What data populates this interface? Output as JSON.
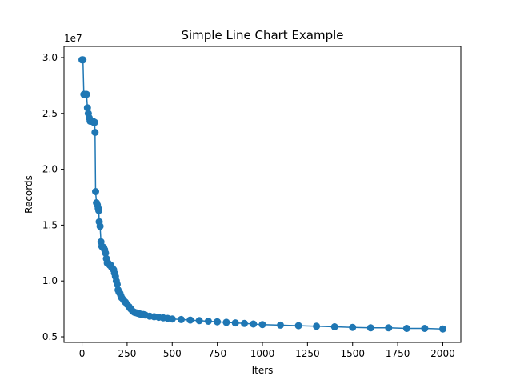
{
  "chart_data": {
    "type": "line",
    "title": "Simple Line Chart Example",
    "xlabel": "Iters",
    "ylabel": "Records",
    "y_scale_label": "1e7",
    "xlim": [
      -100,
      2100
    ],
    "ylim": [
      0.45,
      3.1
    ],
    "x_ticks": [
      0,
      250,
      500,
      750,
      1000,
      1250,
      1500,
      1750,
      2000
    ],
    "x_tick_labels": [
      "0",
      "250",
      "500",
      "750",
      "1000",
      "1250",
      "1500",
      "1750",
      "2000"
    ],
    "y_ticks": [
      0.5,
      1.0,
      1.5,
      2.0,
      2.5,
      3.0
    ],
    "y_tick_labels": [
      "0.5",
      "1.0",
      "1.5",
      "2.0",
      "2.5",
      "3.0"
    ],
    "grid": false,
    "line_color": "#1f77b4",
    "series": [
      {
        "name": "Records",
        "x": [
          0,
          5,
          10,
          15,
          25,
          30,
          35,
          40,
          45,
          50,
          55,
          60,
          65,
          70,
          72,
          75,
          80,
          85,
          90,
          93,
          95,
          100,
          105,
          110,
          115,
          120,
          125,
          130,
          135,
          140,
          145,
          150,
          155,
          160,
          165,
          170,
          175,
          180,
          185,
          190,
          195,
          200,
          205,
          210,
          215,
          220,
          230,
          240,
          250,
          260,
          270,
          280,
          290,
          300,
          310,
          320,
          330,
          340,
          350,
          375,
          400,
          425,
          450,
          475,
          500,
          550,
          600,
          650,
          700,
          750,
          800,
          850,
          900,
          950,
          1000,
          1100,
          1200,
          1300,
          1400,
          1500,
          1600,
          1700,
          1800,
          1900,
          2000
        ],
        "y": [
          2.98,
          2.98,
          2.67,
          2.67,
          2.67,
          2.55,
          2.5,
          2.46,
          2.43,
          2.43,
          2.43,
          2.43,
          2.42,
          2.42,
          2.33,
          1.8,
          1.7,
          1.68,
          1.65,
          1.63,
          1.53,
          1.49,
          1.35,
          1.31,
          1.3,
          1.3,
          1.28,
          1.25,
          1.2,
          1.16,
          1.16,
          1.15,
          1.14,
          1.14,
          1.12,
          1.11,
          1.1,
          1.07,
          1.04,
          1.0,
          0.97,
          0.92,
          0.9,
          0.89,
          0.87,
          0.85,
          0.83,
          0.81,
          0.79,
          0.77,
          0.75,
          0.73,
          0.72,
          0.715,
          0.71,
          0.705,
          0.7,
          0.7,
          0.695,
          0.685,
          0.68,
          0.675,
          0.67,
          0.665,
          0.66,
          0.655,
          0.65,
          0.645,
          0.64,
          0.635,
          0.63,
          0.625,
          0.62,
          0.615,
          0.61,
          0.605,
          0.6,
          0.595,
          0.59,
          0.585,
          0.58,
          0.58,
          0.575,
          0.575,
          0.57
        ]
      }
    ]
  }
}
